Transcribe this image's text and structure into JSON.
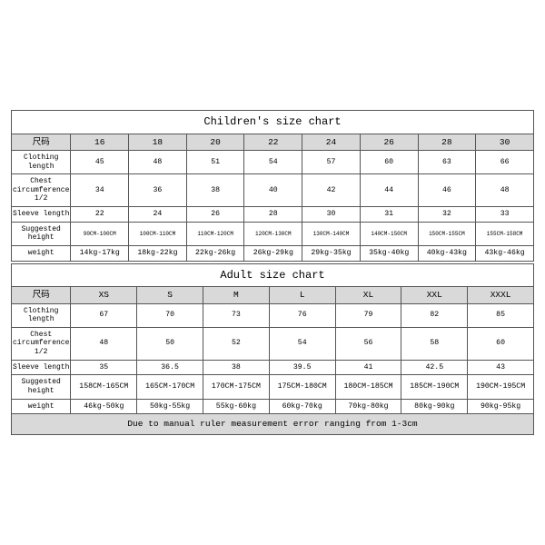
{
  "children": {
    "title": "Children's size chart",
    "header_label": "尺码",
    "sizes": [
      "16",
      "18",
      "20",
      "22",
      "24",
      "26",
      "28",
      "30"
    ],
    "rows": [
      {
        "label": "Clothing length",
        "cells": [
          "45",
          "48",
          "51",
          "54",
          "57",
          "60",
          "63",
          "66"
        ],
        "tiny": false
      },
      {
        "label": "Chest circumference 1/2",
        "cells": [
          "34",
          "36",
          "38",
          "40",
          "42",
          "44",
          "46",
          "48"
        ],
        "tiny": false
      },
      {
        "label": "Sleeve length",
        "cells": [
          "22",
          "24",
          "26",
          "28",
          "30",
          "31",
          "32",
          "33"
        ],
        "tiny": false
      },
      {
        "label": "Suggested height",
        "cells": [
          "90CM-100CM",
          "100CM-110CM",
          "110CM-120CM",
          "120CM-130CM",
          "130CM-140CM",
          "140CM-150CM",
          "150CM-155CM",
          "155CM-158CM"
        ],
        "tiny": true
      },
      {
        "label": "weight",
        "cells": [
          "14kg-17kg",
          "18kg-22kg",
          "22kg-26kg",
          "26kg-29kg",
          "29kg-35kg",
          "35kg-40kg",
          "40kg-43kg",
          "43kg-46kg"
        ],
        "tiny": false
      }
    ]
  },
  "adult": {
    "title": "Adult size chart",
    "header_label": "尺码",
    "sizes": [
      "XS",
      "S",
      "M",
      "L",
      "XL",
      "XXL",
      "XXXL"
    ],
    "rows": [
      {
        "label": "Clothing length",
        "cells": [
          "67",
          "70",
          "73",
          "76",
          "79",
          "82",
          "85"
        ],
        "tiny": false
      },
      {
        "label": "Chest circumference 1/2",
        "cells": [
          "48",
          "50",
          "52",
          "54",
          "56",
          "58",
          "60"
        ],
        "tiny": false
      },
      {
        "label": "Sleeve length",
        "cells": [
          "35",
          "36.5",
          "38",
          "39.5",
          "41",
          "42.5",
          "43"
        ],
        "tiny": false
      },
      {
        "label": "Suggested height",
        "cells": [
          "158CM-165CM",
          "165CM-170CM",
          "170CM-175CM",
          "175CM-180CM",
          "180CM-185CM",
          "185CM-190CM",
          "190CM-195CM"
        ],
        "tiny": false
      },
      {
        "label": "weight",
        "cells": [
          "46kg-50kg",
          "50kg-55kg",
          "55kg-60kg",
          "60kg-70kg",
          "70kg-80kg",
          "80kg-90kg",
          "90kg-95kg"
        ],
        "tiny": false
      }
    ],
    "note": "Due to manual ruler measurement error ranging from 1-3cm"
  },
  "style": {
    "border_color": "#555555",
    "header_bg": "#d9d9d9",
    "note_bg": "#d9d9d9",
    "bg": "#ffffff"
  }
}
